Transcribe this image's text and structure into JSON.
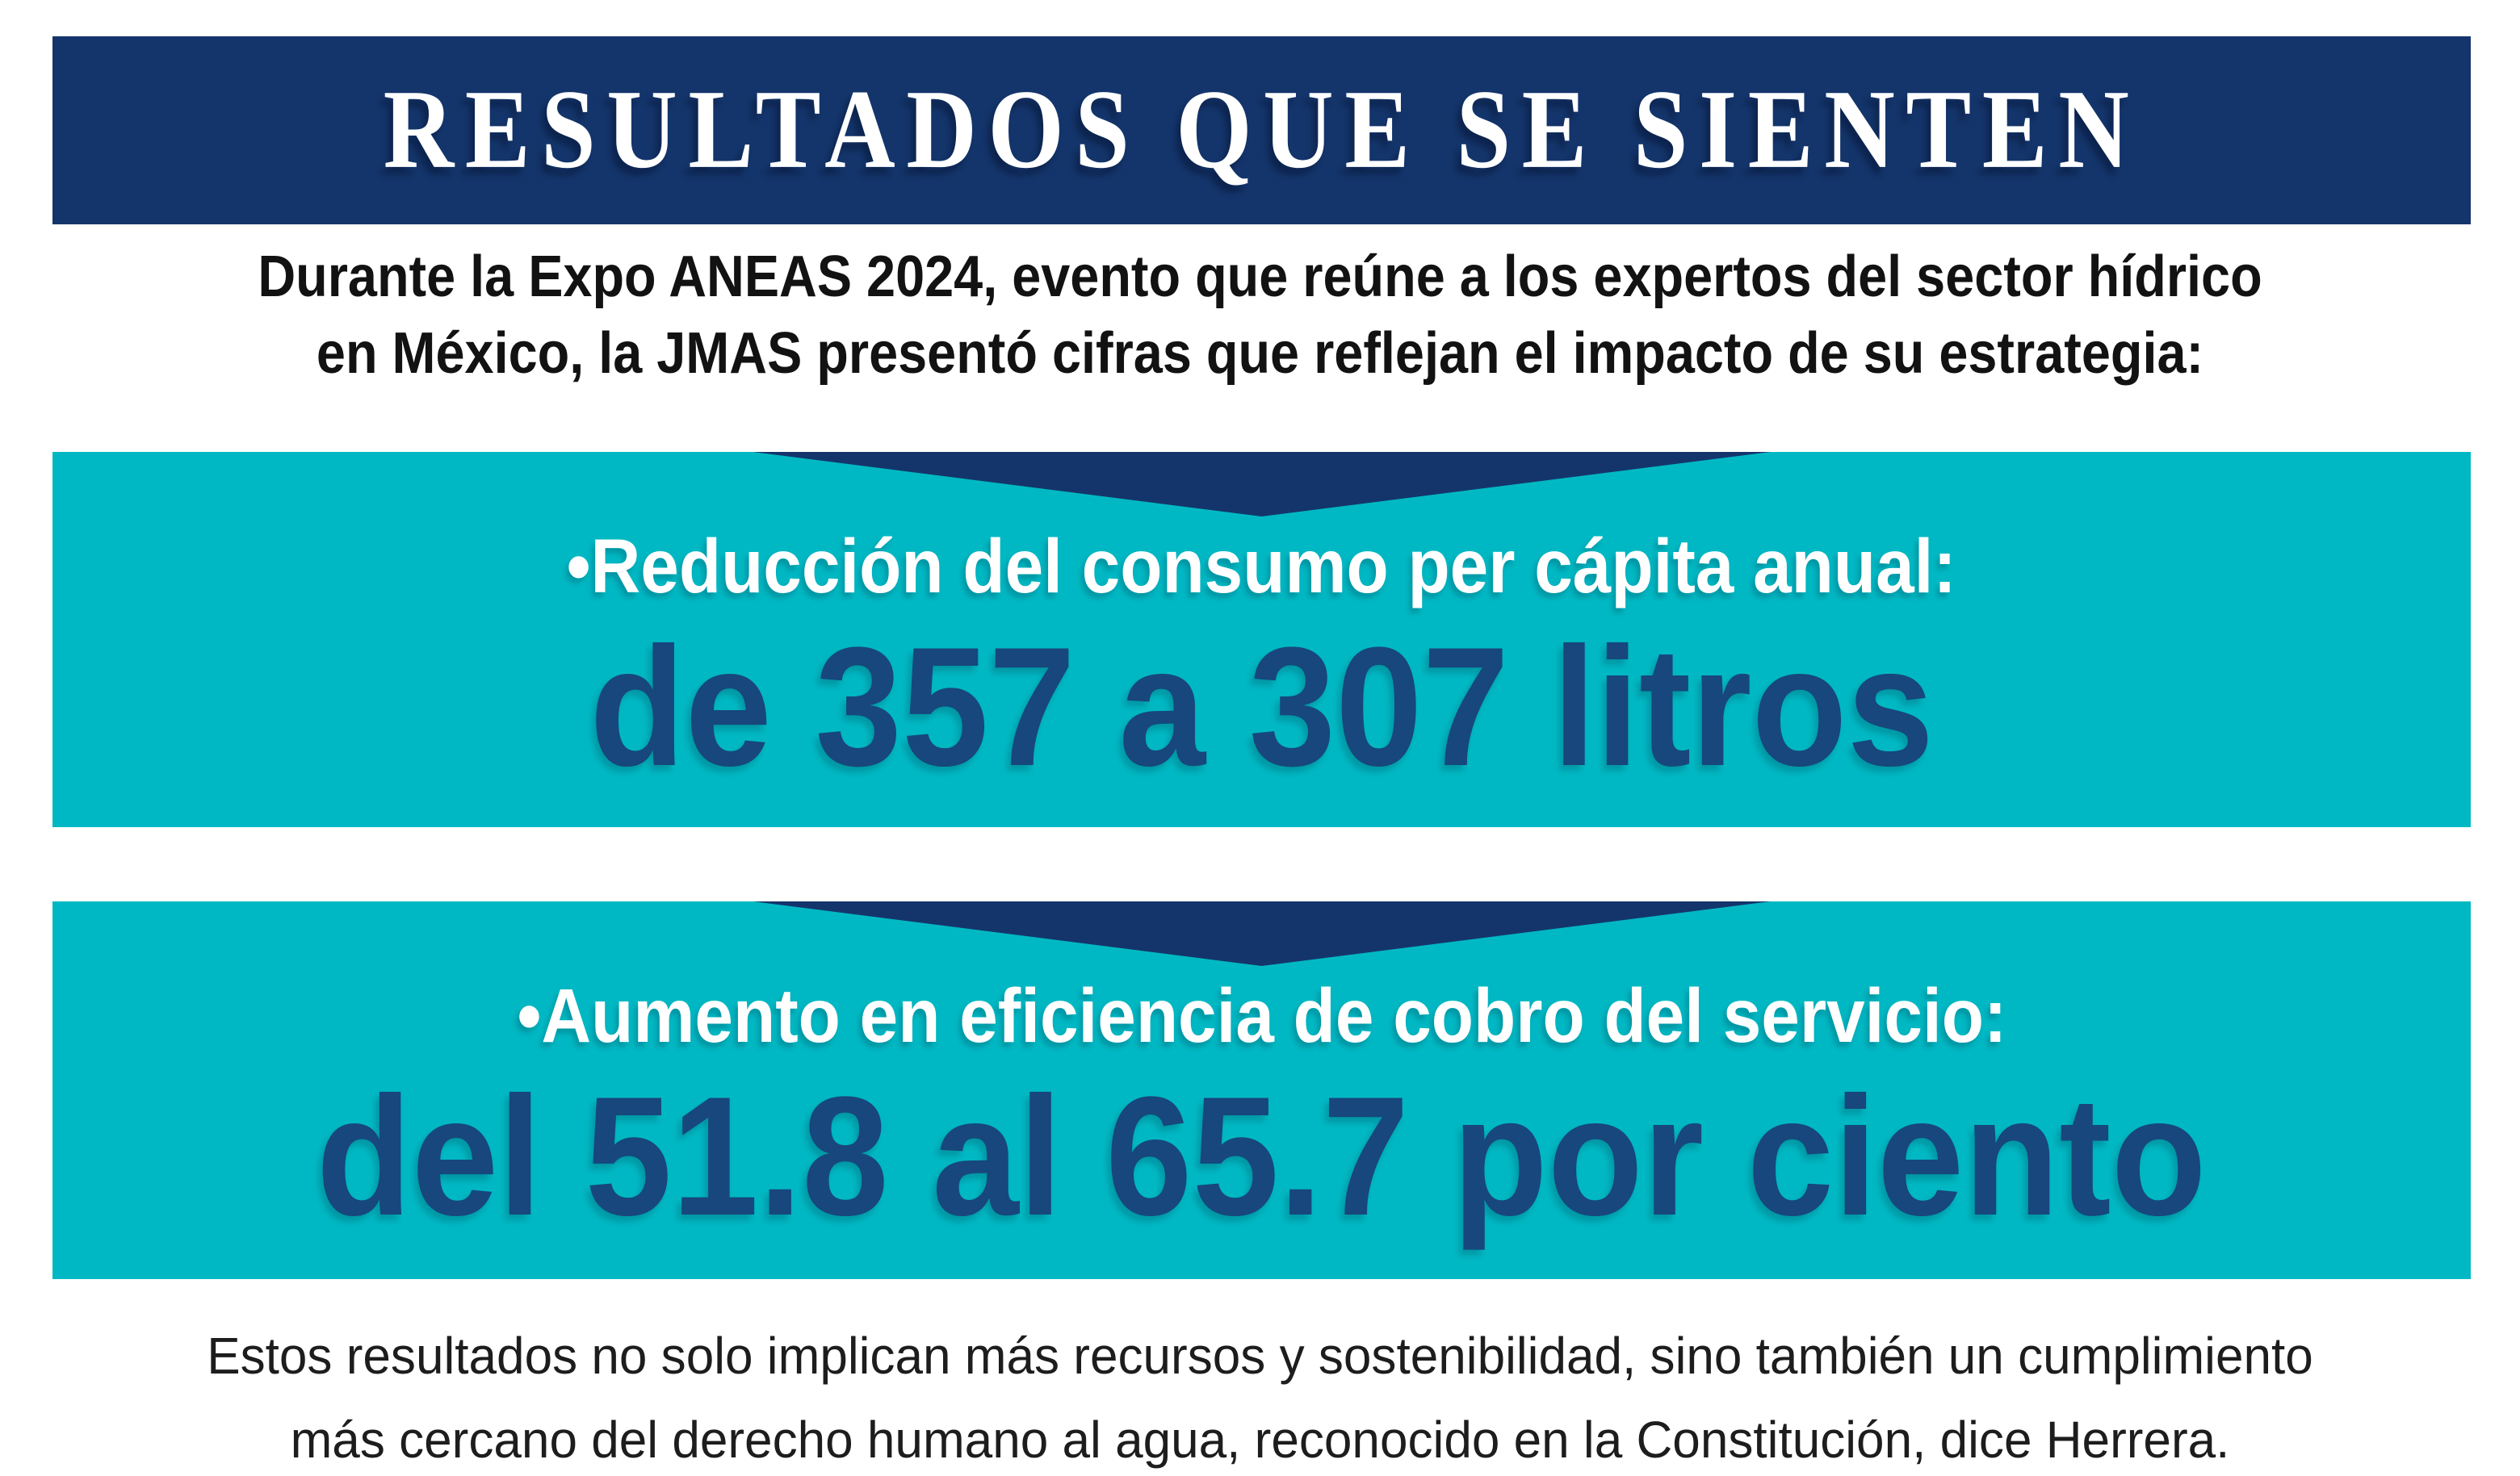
{
  "colors": {
    "navy": "#14356B",
    "teal": "#00B8C3",
    "value_navy": "#17477C",
    "intro_text": "#121212",
    "footer_text": "#1D1D1D",
    "page_bg": "#FFFFFF",
    "title_text": "#FFFFFF"
  },
  "header": {
    "title": "RESULTADOS QUE SE SIENTEN"
  },
  "intro": {
    "lines": [
      "Durante la Expo ANEAS 2024, evento que reúne a los expertos del sector hídrico",
      "en México, la JMAS presentó cifras que reflejan el impacto de su estrategia:"
    ]
  },
  "stats": [
    {
      "label": "•Reducción del consumo per cápita anual:",
      "value": "de 357 a 307 litros"
    },
    {
      "label": "•Aumento en eficiencia de cobro del servicio:",
      "value": "del 51.8 al 65.7 por ciento"
    }
  ],
  "footer": {
    "lines": [
      "Estos resultados no solo implican más recursos y sostenibilidad, sino también un cumplimiento",
      "más cercano del derecho humano al agua, reconocido en la Constitución, dice Herrera."
    ]
  }
}
